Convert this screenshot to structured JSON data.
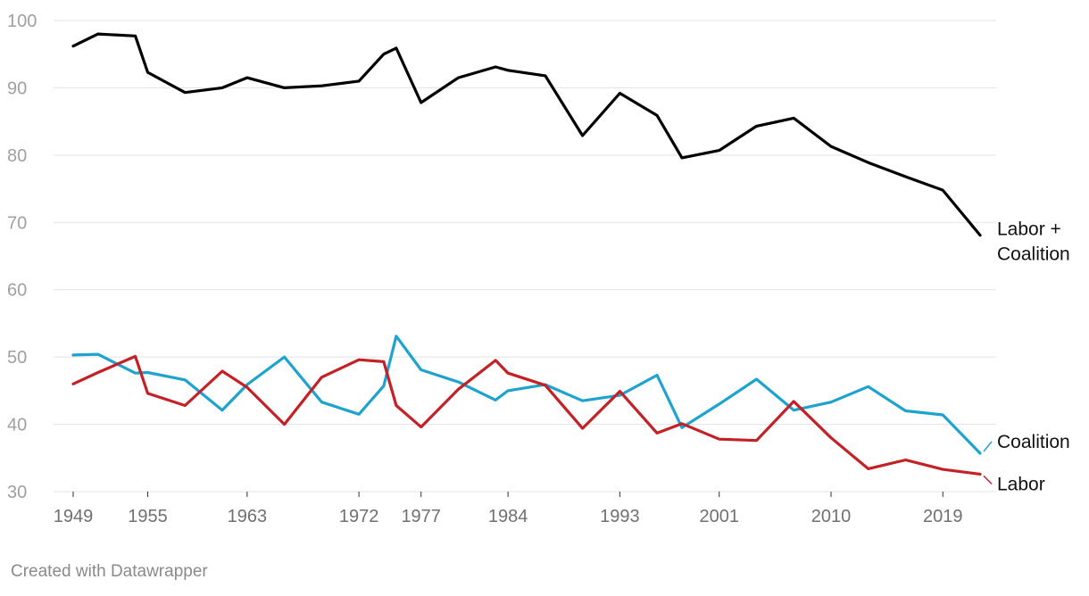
{
  "chart_data": {
    "type": "line",
    "title": "",
    "xlabel": "",
    "ylabel": "",
    "ylim": [
      30,
      100
    ],
    "yticks": [
      30,
      40,
      50,
      60,
      70,
      80,
      90,
      100
    ],
    "xlim": [
      1949,
      2022
    ],
    "xticks": [
      1949,
      1955,
      1963,
      1972,
      1977,
      1984,
      1993,
      2001,
      2010,
      2019
    ],
    "grid": true,
    "legend": "direct labels at line ends",
    "colors": {
      "labor_coalition": "#000000",
      "coalition": "#1ea3cf",
      "labor": "#c42127"
    },
    "x": [
      1949,
      1951,
      1954,
      1955,
      1958,
      1961,
      1963,
      1966,
      1969,
      1972,
      1974,
      1975,
      1977,
      1980,
      1983,
      1984,
      1987,
      1990,
      1993,
      1996,
      1998,
      2001,
      2004,
      2007,
      2010,
      2013,
      2016,
      2019,
      2022
    ],
    "series": [
      {
        "name": "Labor + Coalition",
        "key": "labor_coalition",
        "values": [
          96.2,
          98.0,
          97.7,
          92.3,
          89.3,
          90.0,
          91.5,
          90.0,
          90.3,
          91.0,
          95.0,
          95.9,
          87.8,
          91.5,
          93.1,
          92.6,
          91.8,
          82.9,
          89.2,
          85.9,
          79.6,
          80.7,
          84.3,
          85.5,
          81.3,
          78.9,
          76.8,
          74.8,
          68.1
        ]
      },
      {
        "name": "Coalition",
        "key": "coalition",
        "values": [
          50.3,
          50.4,
          47.6,
          47.7,
          46.6,
          42.1,
          45.9,
          50.0,
          43.3,
          41.5,
          45.7,
          53.1,
          48.1,
          46.3,
          43.6,
          45.0,
          45.9,
          43.5,
          44.3,
          47.3,
          39.5,
          43.0,
          46.7,
          42.1,
          43.3,
          45.6,
          42.0,
          41.4,
          35.7
        ]
      },
      {
        "name": "Labor",
        "key": "labor",
        "values": [
          46.0,
          47.7,
          50.1,
          44.6,
          42.8,
          47.9,
          45.5,
          40.0,
          47.0,
          49.6,
          49.3,
          42.8,
          39.6,
          45.2,
          49.5,
          47.6,
          45.8,
          39.4,
          44.9,
          38.7,
          40.1,
          37.8,
          37.6,
          43.4,
          38.0,
          33.4,
          34.7,
          33.3,
          32.6
        ]
      }
    ]
  },
  "credit": "Created with Datawrapper"
}
